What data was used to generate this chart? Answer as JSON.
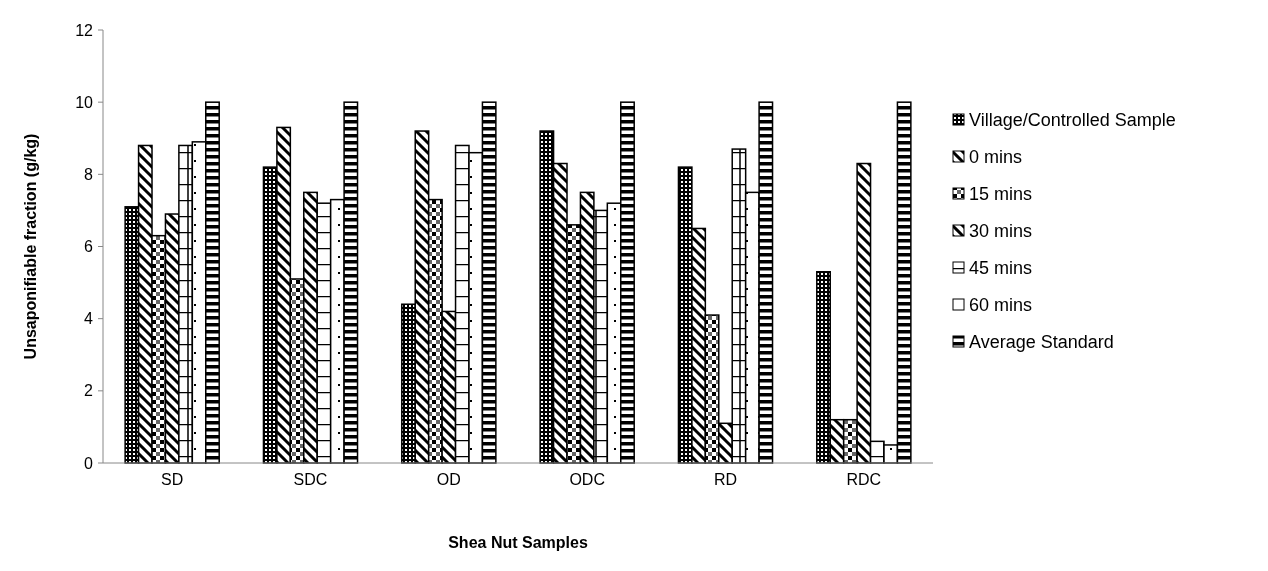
{
  "chart_data": {
    "type": "bar",
    "xlabel": "Shea Nut Samples",
    "ylabel": "Unsaponifiable fraction (g/kg)",
    "categories": [
      "SD",
      "SDC",
      "OD",
      "ODC",
      "RD",
      "RDC"
    ],
    "series": [
      {
        "name": "Village/Controlled Sample",
        "color": "#000000",
        "values": [
          7.1,
          8.2,
          4.4,
          9.2,
          8.2,
          5.3
        ]
      },
      {
        "name": "0 mins",
        "color": "#000000",
        "values": [
          8.8,
          9.3,
          9.2,
          8.3,
          6.5,
          1.2
        ]
      },
      {
        "name": "15 mins",
        "color": "#000000",
        "values": [
          6.3,
          5.1,
          7.3,
          6.6,
          4.1,
          1.2
        ]
      },
      {
        "name": "30 mins",
        "color": "#000000",
        "values": [
          6.9,
          7.5,
          4.2,
          7.5,
          1.1,
          8.3
        ]
      },
      {
        "name": "45 mins",
        "color": "#000000",
        "values": [
          8.8,
          7.2,
          8.8,
          7.0,
          8.7,
          0.6
        ]
      },
      {
        "name": "60 mins",
        "color": "#000000",
        "values": [
          8.9,
          7.3,
          8.6,
          7.2,
          7.5,
          0.5
        ]
      },
      {
        "name": "Average Standard",
        "color": "#000000",
        "values": [
          10,
          10,
          10,
          10,
          10,
          10
        ]
      }
    ],
    "ylim": [
      0,
      12
    ],
    "yticks": [
      0,
      2,
      4,
      6,
      8,
      10,
      12
    ],
    "grid": false,
    "legend": "right"
  }
}
